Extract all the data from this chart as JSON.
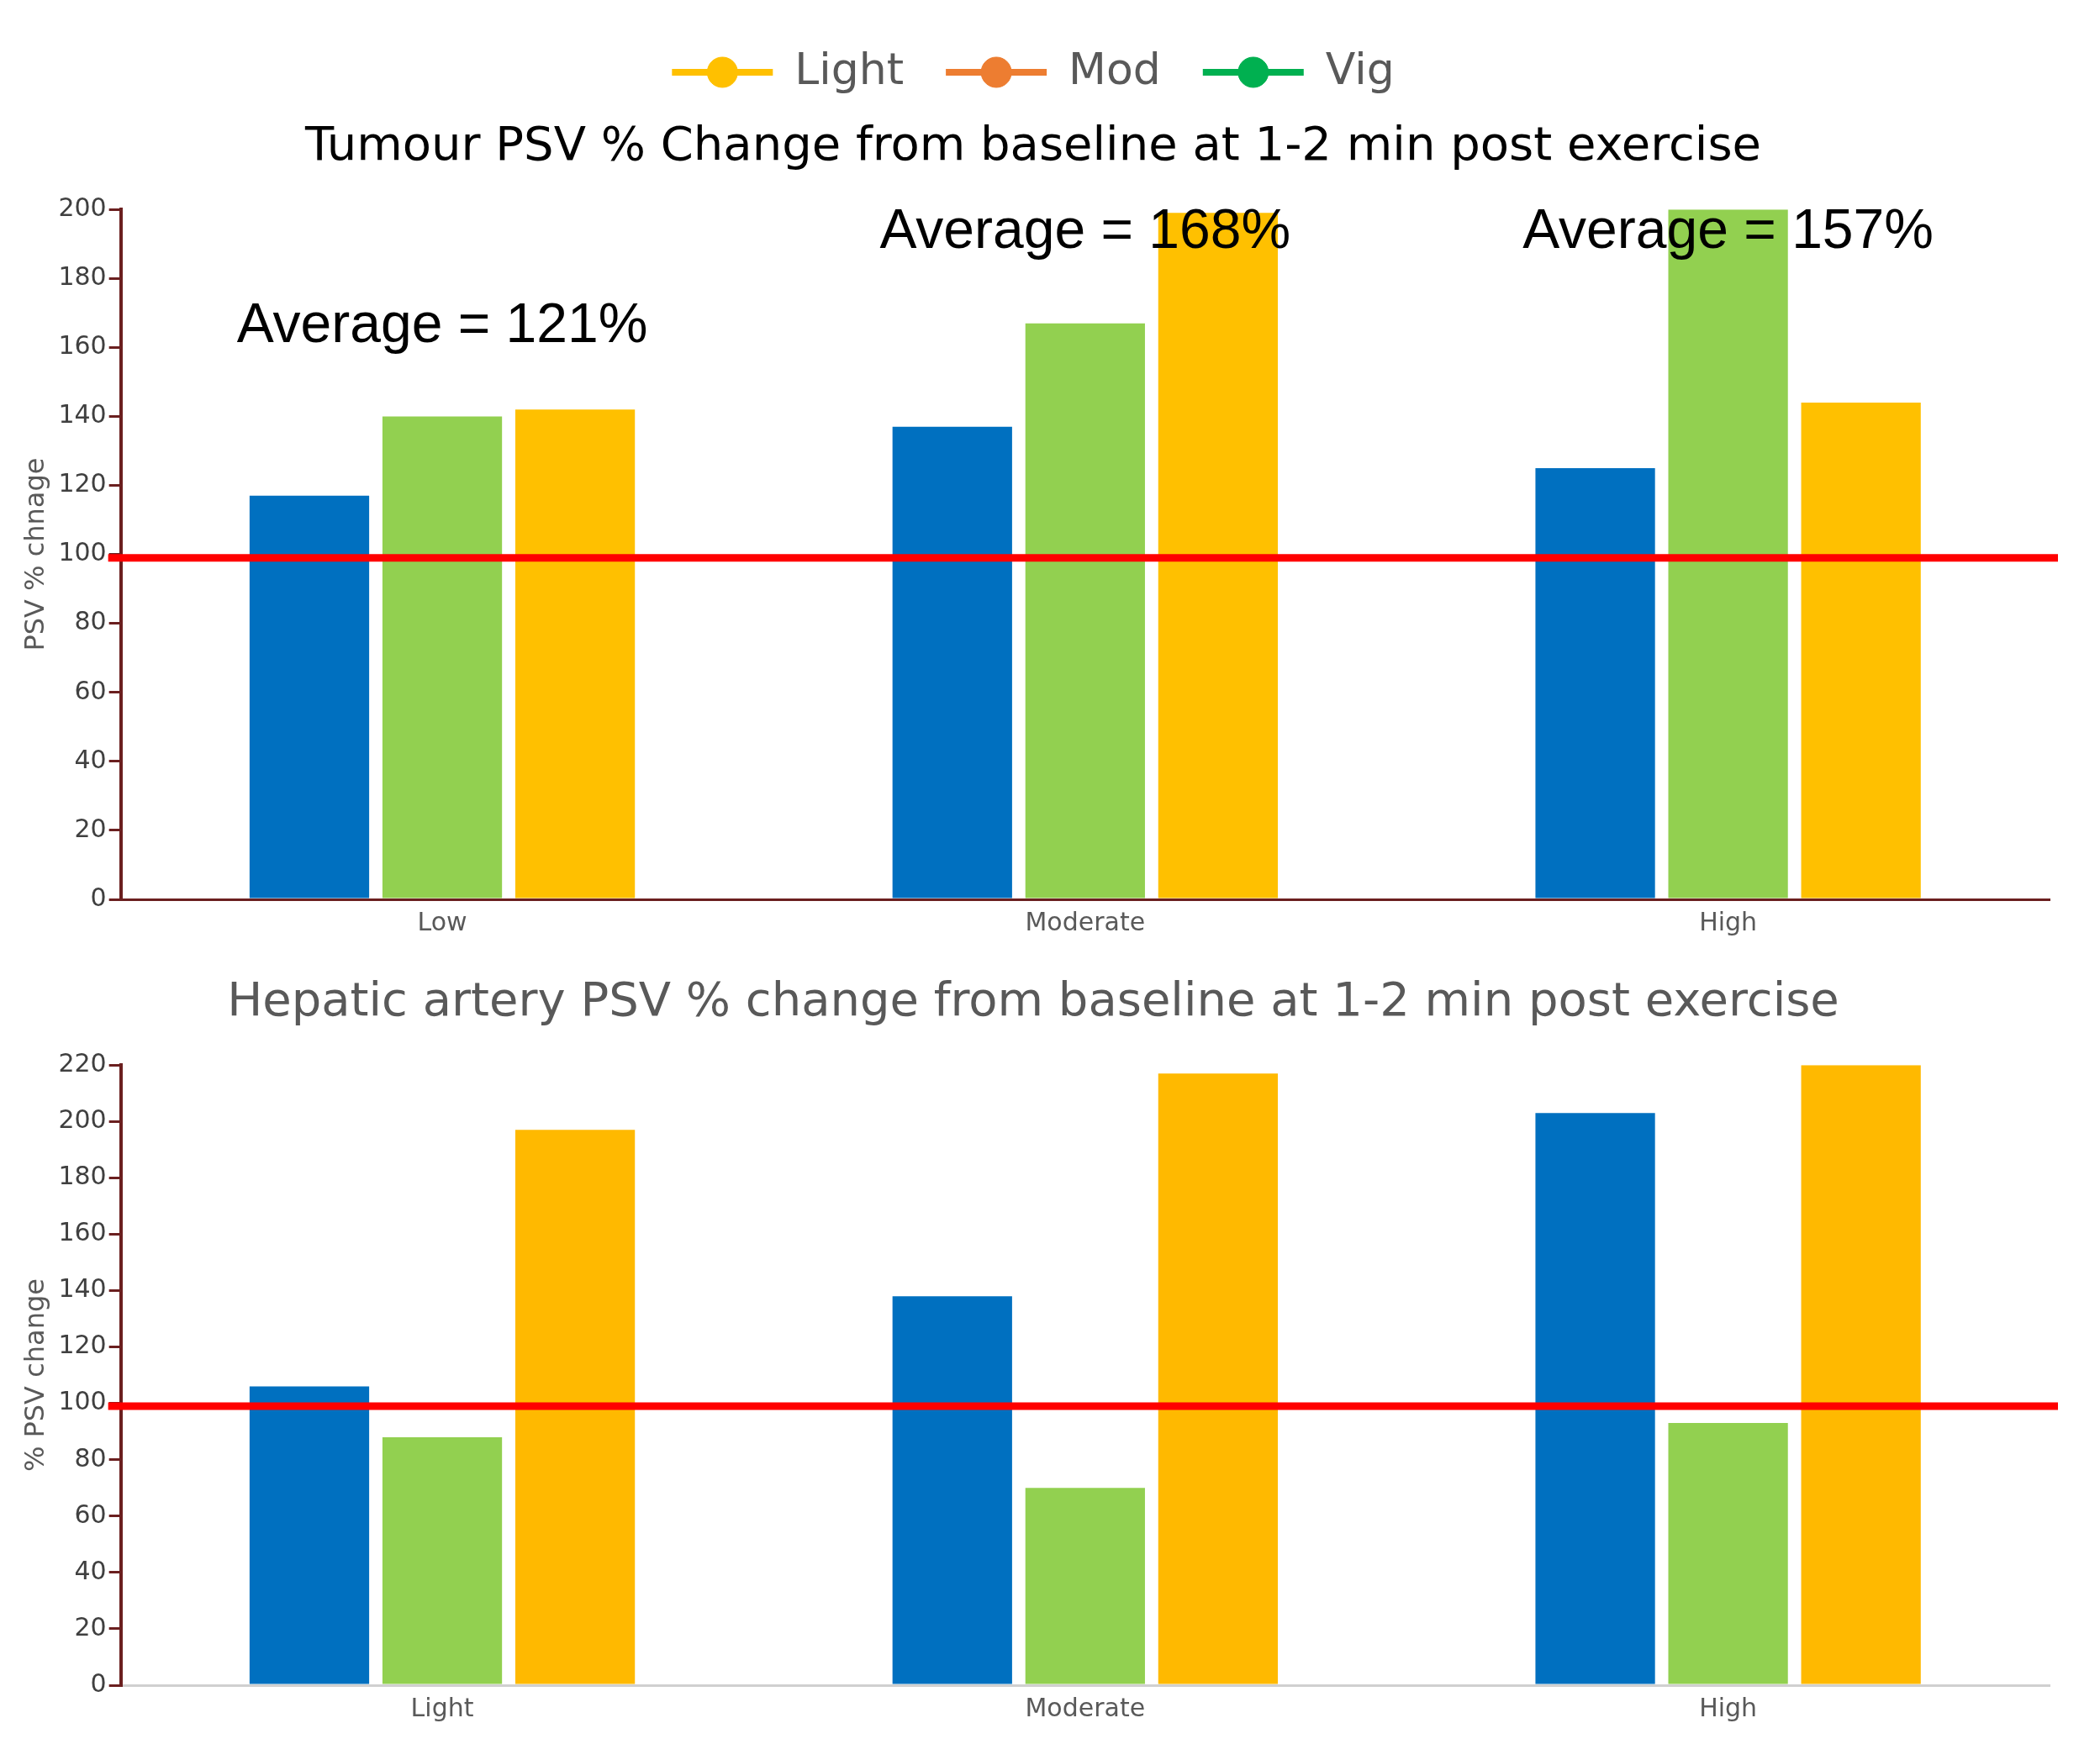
{
  "chart_data": [
    {
      "type": "bar",
      "title": "Tumour PSV % Change from baseline at 1-2 min post exercise",
      "ylabel": "PSV % chnage",
      "categories": [
        "Low",
        "Moderate",
        "High"
      ],
      "series": [
        {
          "color": "#0070c0",
          "values": [
            117,
            137,
            125
          ]
        },
        {
          "color": "#92d050",
          "values": [
            140,
            167,
            200
          ]
        },
        {
          "color": "#ffc000",
          "values": [
            142,
            199,
            144
          ]
        },
        {
          "name": "Light",
          "type": "line",
          "color": "#ffc000",
          "values": [
            null,
            null,
            null
          ]
        },
        {
          "name": "Mod",
          "type": "line",
          "color": "#ed7d31",
          "values": [
            null,
            null,
            null
          ]
        },
        {
          "name": "Vig",
          "type": "line",
          "color": "#00b050",
          "values": [
            null,
            null,
            null
          ]
        }
      ],
      "marker": "circle",
      "legend": "top",
      "ylim": [
        0,
        200
      ],
      "yticks": [
        0,
        20,
        40,
        60,
        80,
        100,
        120,
        140,
        160,
        180,
        200
      ],
      "ref_lines": [
        {
          "axis": "y",
          "value": 99,
          "color": "#ff0000"
        }
      ],
      "annotations": [
        "Average = 121%",
        "Average = 168%",
        "Average = 157%"
      ]
    },
    {
      "type": "bar",
      "title": "Hepatic artery PSV % change from baseline at 1-2 min post exercise",
      "ylabel": "% PSV change",
      "categories": [
        "Light",
        "Moderate",
        "High"
      ],
      "series": [
        {
          "color": "#0070c0",
          "values": [
            106,
            138,
            203
          ]
        },
        {
          "color": "#92d050",
          "values": [
            88,
            70,
            93
          ]
        },
        {
          "color": "#ffb900",
          "values": [
            197,
            217,
            220
          ]
        }
      ],
      "ylim": [
        0,
        220
      ],
      "yticks": [
        0,
        20,
        40,
        60,
        80,
        100,
        120,
        140,
        160,
        180,
        200,
        220
      ],
      "ref_lines": [
        {
          "axis": "y",
          "value": 99,
          "color": "#ff0000"
        }
      ]
    }
  ]
}
